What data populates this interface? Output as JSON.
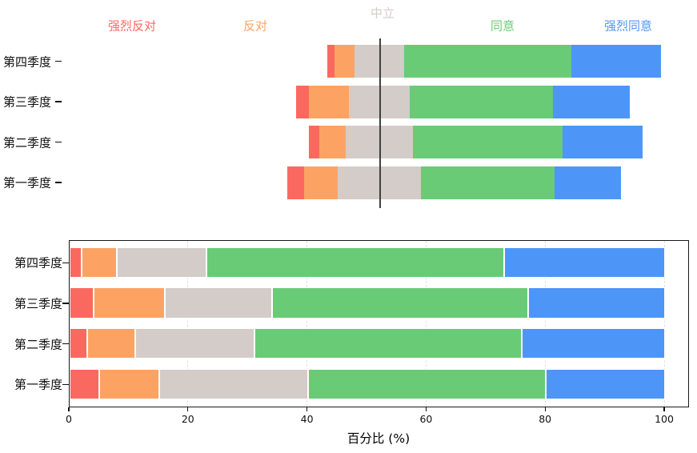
{
  "figure": {
    "background": "#ffffff"
  },
  "chart_data": [
    {
      "type": "bar",
      "orientation": "horizontal",
      "variant": "diverging_stacked_likert",
      "title": "",
      "categories": [
        "第四季度",
        "第三季度",
        "第二季度",
        "第一季度"
      ],
      "series": [
        {
          "name": "强烈反对",
          "color": "#FA6960",
          "values": [
            2,
            4,
            3,
            5
          ]
        },
        {
          "name": "反对",
          "color": "#FCA364",
          "values": [
            6,
            12,
            8,
            10
          ]
        },
        {
          "name": "中立",
          "color": "#D3CCC9",
          "values": [
            15,
            18,
            20,
            25
          ]
        },
        {
          "name": "同意",
          "color": "#69CB76",
          "values": [
            50,
            43,
            45,
            40
          ]
        },
        {
          "name": "强烈同意",
          "color": "#4D96F8",
          "values": [
            27,
            23,
            24,
            20
          ]
        }
      ],
      "units": "percent",
      "neutral_centered_on_line": true,
      "center_line_color": "#404040",
      "legend_position": "top",
      "grid": false,
      "axes_visible": false
    },
    {
      "type": "bar",
      "orientation": "horizontal",
      "variant": "stacked",
      "title": "",
      "categories": [
        "第四季度",
        "第三季度",
        "第二季度",
        "第一季度"
      ],
      "series": [
        {
          "name": "强烈反对",
          "color": "#FA6960",
          "values": [
            2,
            4,
            3,
            5
          ]
        },
        {
          "name": "反对",
          "color": "#FCA364",
          "values": [
            6,
            12,
            8,
            10
          ]
        },
        {
          "name": "中立",
          "color": "#D3CCC9",
          "values": [
            15,
            18,
            20,
            25
          ]
        },
        {
          "name": "同意",
          "color": "#69CB76",
          "values": [
            50,
            43,
            45,
            40
          ]
        },
        {
          "name": "强烈同意",
          "color": "#4D96F8",
          "values": [
            27,
            23,
            24,
            20
          ]
        }
      ],
      "xlabel": "百分比 (%)",
      "xticks": [
        0,
        20,
        40,
        60,
        80,
        100
      ],
      "xlim": [
        0,
        104
      ],
      "grid": true,
      "gridstyle": "dashed",
      "legend_position": "none"
    }
  ]
}
